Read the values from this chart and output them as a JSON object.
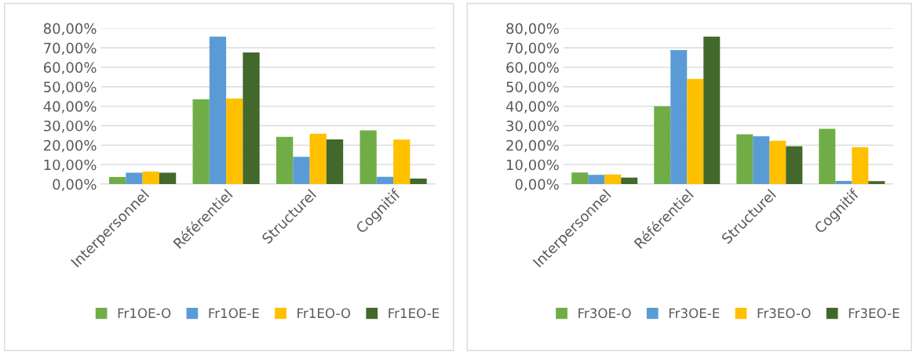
{
  "chart_data": [
    {
      "type": "bar",
      "categories": [
        "Interpersonnel",
        "Référentiel",
        "Structurel",
        "Cognitif"
      ],
      "series": [
        {
          "name": "Fr1OE-O",
          "color": "#70ad47",
          "values": [
            3.6,
            43.6,
            24.3,
            27.6
          ]
        },
        {
          "name": "Fr1OE-E",
          "color": "#5b9bd5",
          "values": [
            5.8,
            75.7,
            14.0,
            3.7
          ]
        },
        {
          "name": "Fr1EO-O",
          "color": "#ffc000",
          "values": [
            6.5,
            44.0,
            25.9,
            22.8
          ]
        },
        {
          "name": "Fr1EO-E",
          "color": "#43682b",
          "values": [
            5.8,
            67.6,
            22.9,
            2.8
          ]
        }
      ],
      "ylim": [
        0,
        80
      ],
      "yticks": [
        {
          "value": 0,
          "label": "0,00%"
        },
        {
          "value": 10,
          "label": "10,00%"
        },
        {
          "value": 20,
          "label": "20,00%"
        },
        {
          "value": 30,
          "label": "30,00%"
        },
        {
          "value": 40,
          "label": "40,00%"
        },
        {
          "value": 50,
          "label": "50,00%"
        },
        {
          "value": 60,
          "label": "60,00%"
        },
        {
          "value": 70,
          "label": "70,00%"
        },
        {
          "value": 80,
          "label": "80,00%"
        }
      ],
      "grid": "y",
      "legend": "bottom"
    },
    {
      "type": "bar",
      "categories": [
        "Interpersonnel",
        "Référentiel",
        "Structurel",
        "Cognitif"
      ],
      "series": [
        {
          "name": "Fr3OE-O",
          "color": "#70ad47",
          "values": [
            5.9,
            39.9,
            25.6,
            28.4
          ]
        },
        {
          "name": "Fr3OE-E",
          "color": "#5b9bd5",
          "values": [
            4.7,
            68.8,
            24.6,
            1.6
          ]
        },
        {
          "name": "Fr3EO-O",
          "color": "#ffc000",
          "values": [
            4.9,
            54.0,
            22.2,
            18.9
          ]
        },
        {
          "name": "Fr3EO-E",
          "color": "#43682b",
          "values": [
            3.3,
            75.7,
            19.4,
            1.5
          ]
        }
      ],
      "ylim": [
        0,
        80
      ],
      "yticks": [
        {
          "value": 0,
          "label": "0,00%"
        },
        {
          "value": 10,
          "label": "10,00%"
        },
        {
          "value": 20,
          "label": "20,00%"
        },
        {
          "value": 30,
          "label": "30,00%"
        },
        {
          "value": 40,
          "label": "40,00%"
        },
        {
          "value": 50,
          "label": "50,00%"
        },
        {
          "value": 60,
          "label": "60,00%"
        },
        {
          "value": 70,
          "label": "70,00%"
        },
        {
          "value": 80,
          "label": "80,00%"
        }
      ],
      "grid": "y",
      "legend": "bottom"
    }
  ]
}
